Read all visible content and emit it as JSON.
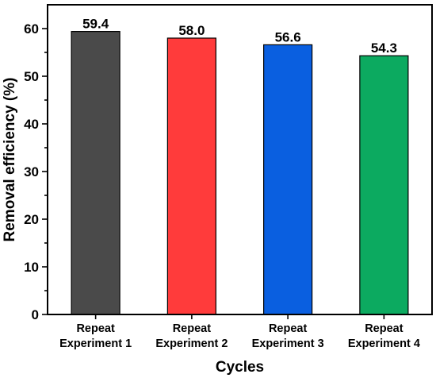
{
  "chart_data": {
    "type": "bar",
    "categories": [
      [
        "Repeat",
        "Experiment 1"
      ],
      [
        "Repeat",
        "Experiment 2"
      ],
      [
        "Repeat",
        "Experiment 3"
      ],
      [
        "Repeat",
        "Experiment 4"
      ]
    ],
    "values": [
      59.4,
      58.0,
      56.6,
      54.3
    ],
    "value_labels": [
      "59.4",
      "58.0",
      "56.6",
      "54.3"
    ],
    "colors": [
      "#4a4a4a",
      "#ff3b3b",
      "#0a5fe0",
      "#0caa60"
    ],
    "xlabel": "Cycles",
    "ylabel": "Removal efficiency (%)",
    "ylim": [
      0,
      65
    ],
    "yticks": [
      0,
      10,
      20,
      30,
      40,
      50,
      60
    ],
    "grid": false,
    "legend": "none"
  }
}
